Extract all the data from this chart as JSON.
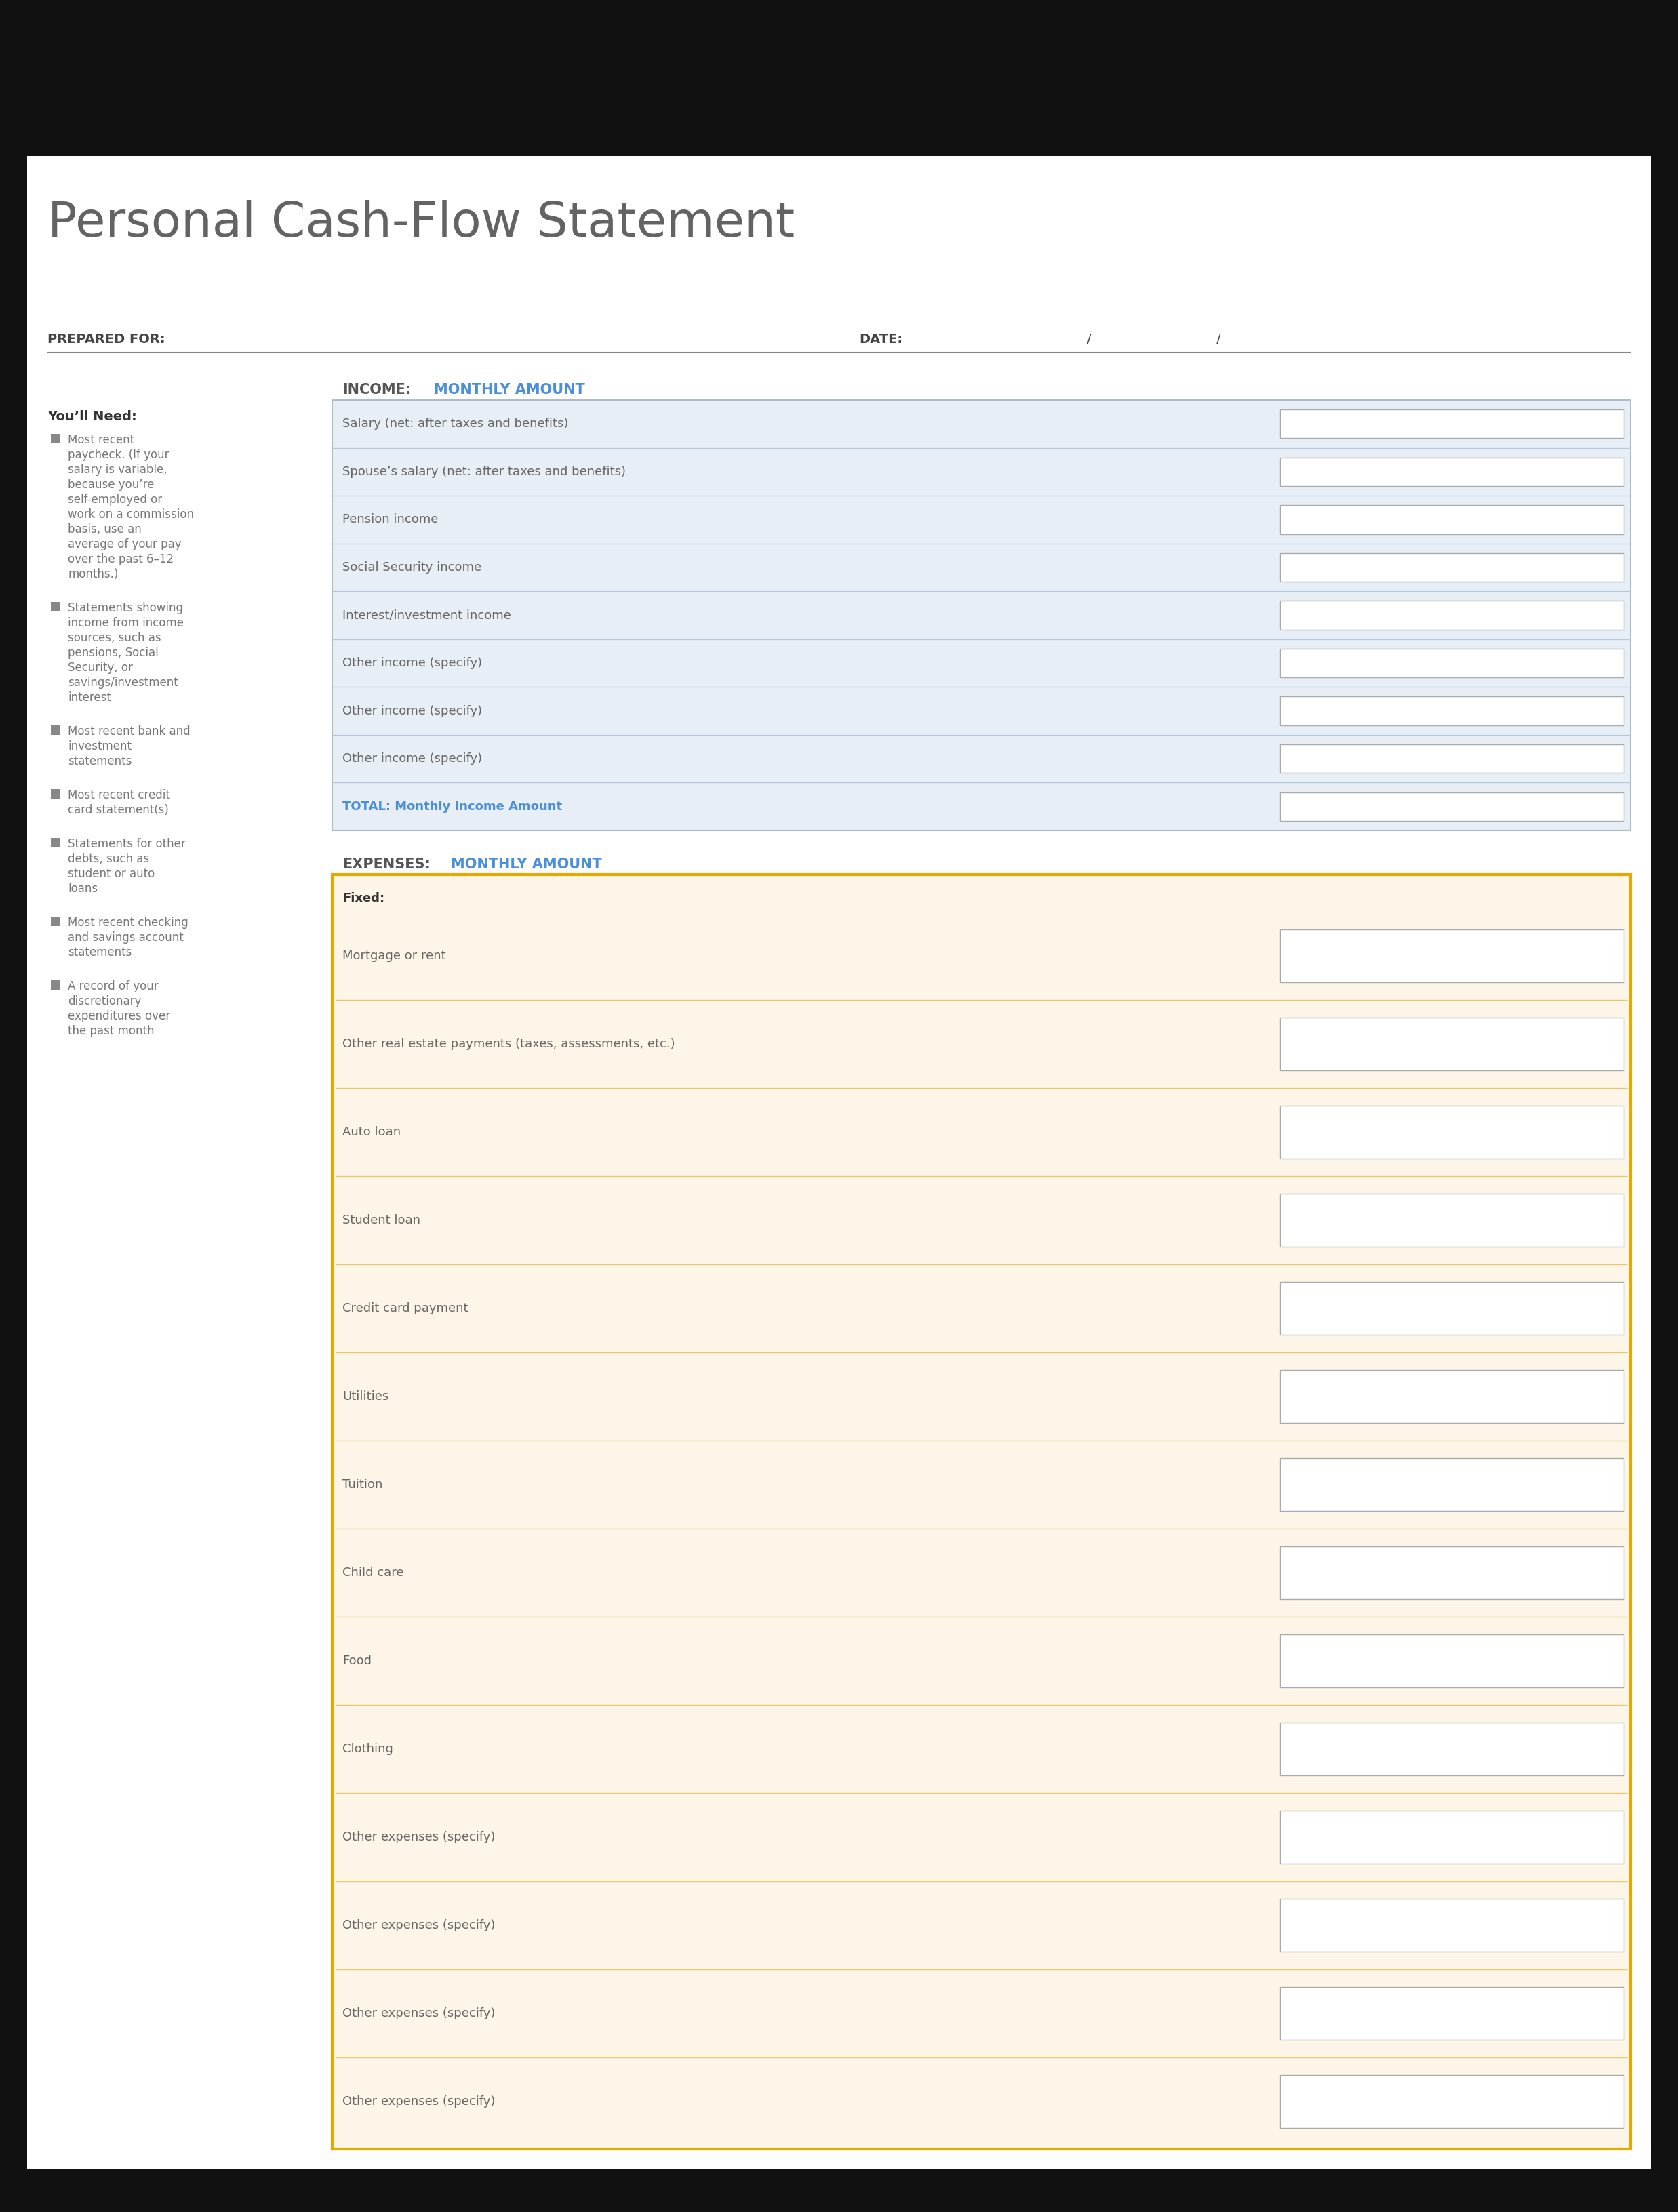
{
  "title": "Personal Cash-Flow Statement",
  "title_color": "#636363",
  "background_color": "#111111",
  "page_bg": "#ffffff",
  "prepared_for_label": "PREPARED FOR:",
  "date_label": "DATE:",
  "date_slash1": "/",
  "date_slash2": "/",
  "income_label": "INCOME:",
  "income_monthly_label": "MONTHLY AMOUNT",
  "income_color": "#555555",
  "monthly_color": "#4A90D9",
  "expenses_label": "EXPENSES:",
  "expenses_monthly_label": "MONTHLY AMOUNT",
  "youll_need_title": "You’ll Need:",
  "youll_need_items": [
    "Most recent paycheck. (If your salary is variable, because you’re self-employed or work on a commission basis, use an average of your pay over the past 6–12 months.)",
    "Statements showing income from income sources, such as pensions, Social Security, or savings/investment interest",
    "Most recent bank and investment statements",
    "Most recent credit card statement(s)",
    "Statements for other debts, such as student or auto loans",
    "Most recent checking and savings account statements",
    "A record of your discretionary expenditures over the past month"
  ],
  "income_rows": [
    "Salary (net: after taxes and benefits)",
    "Spouse’s salary (net: after taxes and benefits)",
    "Pension income",
    "Social Security income",
    "Interest/investment income",
    "Other income (specify)",
    "Other income (specify)",
    "Other income (specify)",
    "TOTAL: Monthly Income Amount"
  ],
  "total_row_index": 8,
  "income_row_bg": "#e8eef5",
  "expense_fixed_label": "Fixed:",
  "expense_fixed_rows": [
    "Mortgage or rent",
    "Other real estate payments (taxes, assessments, etc.)",
    "Auto loan",
    "Student loan",
    "Credit card payment",
    "Utilities",
    "Tuition",
    "Child care",
    "Food",
    "Clothing",
    "Other expenses (specify)",
    "Other expenses (specify)",
    "Other expenses (specify)",
    "Other expenses (specify)"
  ],
  "expense_bg": "#fdf6e8",
  "expense_border": "#e8a800",
  "input_box_color": "#ffffff",
  "input_box_border": "#aaaaaa",
  "row_sep_color_income": "#b8c8d8",
  "row_sep_color_expense": "#e8c870",
  "text_color_dark": "#666666",
  "text_color_bullet": "#777777",
  "label_fontsize": 7,
  "row_fontsize": 7,
  "title_fontsize": 20,
  "header_fontsize": 7
}
